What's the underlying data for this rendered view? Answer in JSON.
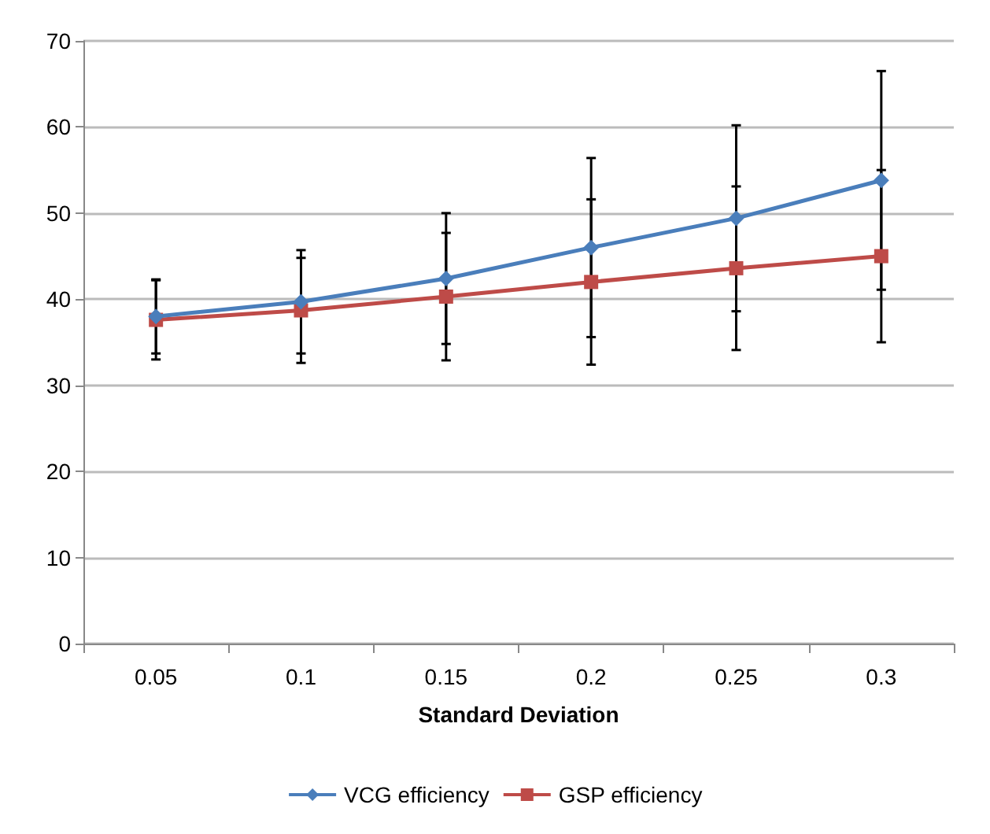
{
  "chart_data": {
    "type": "line",
    "xlabel": "Standard Deviation",
    "categories": [
      "0.05",
      "0.1",
      "0.15",
      "0.2",
      "0.25",
      "0.3"
    ],
    "series": [
      {
        "name": "VCG efficiency",
        "color": "#4a7ebb",
        "marker": "diamond",
        "values": [
          38.0,
          39.7,
          42.4,
          46.0,
          49.4,
          53.8
        ],
        "errors": [
          4.3,
          6.0,
          7.6,
          10.4,
          10.8,
          12.7
        ]
      },
      {
        "name": "GSP efficiency",
        "color": "#be4b48",
        "marker": "square",
        "values": [
          37.6,
          38.7,
          40.3,
          42.0,
          43.6,
          45.0
        ],
        "errors": [
          4.6,
          6.1,
          7.4,
          9.6,
          9.5,
          10.0
        ]
      }
    ],
    "ylim": [
      0,
      70
    ],
    "yticks": [
      0,
      10,
      20,
      30,
      40,
      50,
      60,
      70
    ],
    "grid": "y",
    "legend": "bottom"
  }
}
